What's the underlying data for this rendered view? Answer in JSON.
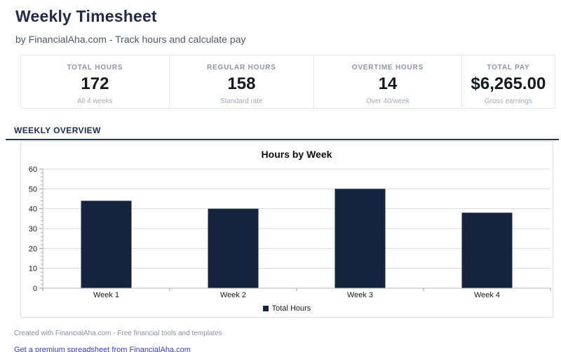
{
  "header": {
    "title": "Weekly Timesheet",
    "subtitle": "by FinancialAha.com - Track hours and calculate pay"
  },
  "stats": [
    {
      "label": "TOTAL HOURS",
      "value": "172",
      "sub": "All 4 weeks"
    },
    {
      "label": "REGULAR HOURS",
      "value": "158",
      "sub": "Standard rate"
    },
    {
      "label": "OVERTIME HOURS",
      "value": "14",
      "sub": "Over 40/week"
    },
    {
      "label": "TOTAL PAY",
      "value": "$6,265.00",
      "sub": "Gross earnings"
    }
  ],
  "section": {
    "title": "WEEKLY OVERVIEW"
  },
  "chart_data": {
    "type": "bar",
    "title": "Hours by Week",
    "categories": [
      "Week 1",
      "Week 2",
      "Week 3",
      "Week 4"
    ],
    "values": [
      44,
      40,
      50,
      38
    ],
    "legend": [
      "Total Hours"
    ],
    "xlabel": "",
    "ylabel": "",
    "ylim": [
      0,
      60
    ],
    "ytick_step": 10,
    "minor_tick_step": 2,
    "grid": true,
    "legend_position": "bottom",
    "bar_color": "#16233c",
    "grid_color": "#d9d9d9",
    "axis_color": "#b5b5b5"
  },
  "footer": {
    "credit": "Created with FinancialAha.com - Free financial tools and templates",
    "link": "Get a premium spreadsheet from FinancialAha.com"
  }
}
